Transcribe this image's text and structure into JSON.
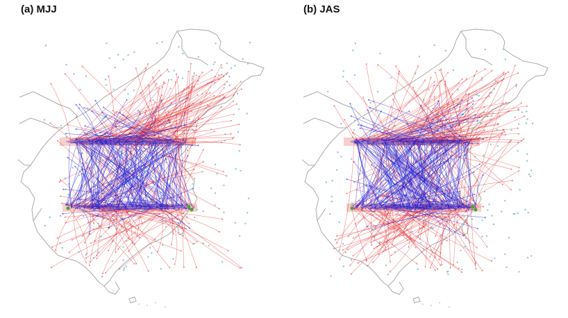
{
  "panels": [
    {
      "title": "(a) MJJ",
      "arrow_colors": {
        "primary": "#e41a1c",
        "secondary": "#1f1fd6"
      }
    },
    {
      "title": "(b) JAS",
      "arrow_colors": {
        "primary": "#e41a1c",
        "secondary": "#1f1fd6"
      }
    }
  ],
  "colors": {
    "coastline": "#a9a9a9",
    "station": "#8ec5d6",
    "band_highlight": "#f6c2bd",
    "green_marker": "#3caa2c"
  }
}
